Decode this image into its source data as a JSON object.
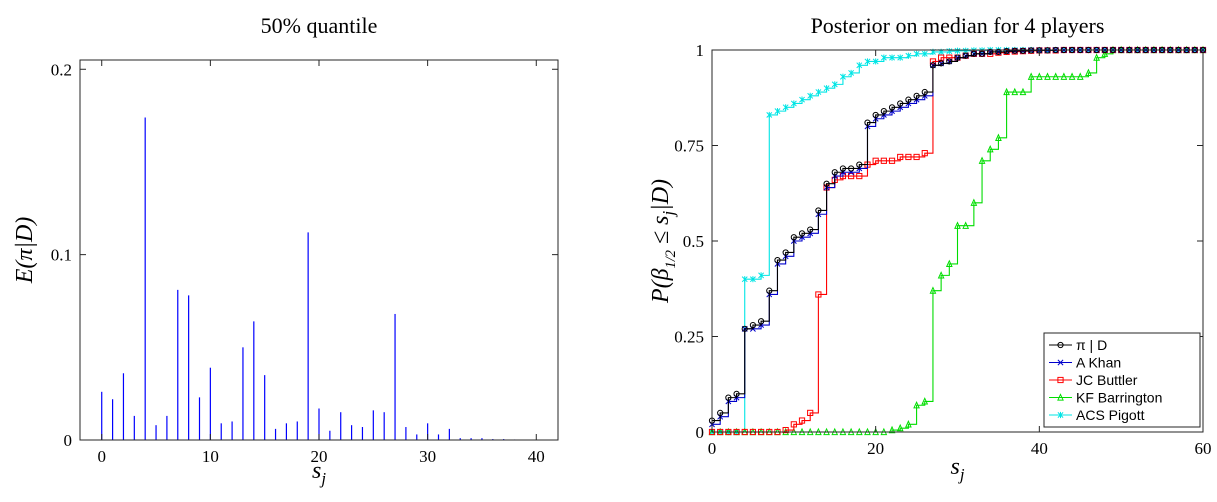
{
  "chart_data": [
    {
      "type": "bar",
      "title": "50% quantile",
      "xlabel": "s_j",
      "ylabel": "E(π|D)",
      "xlim": [
        -2,
        42
      ],
      "ylim": [
        0,
        0.205
      ],
      "xticks": [
        0,
        10,
        20,
        30,
        40
      ],
      "yticks": [
        0,
        0.1,
        0.2
      ],
      "ytick_labels": [
        "0",
        "0.1",
        "0.2"
      ],
      "grid": false,
      "color": "#0000ff",
      "x": [
        0,
        1,
        2,
        3,
        4,
        5,
        6,
        7,
        8,
        9,
        10,
        11,
        12,
        13,
        14,
        15,
        16,
        17,
        18,
        19,
        20,
        21,
        22,
        23,
        24,
        25,
        26,
        27,
        28,
        29,
        30,
        31,
        32,
        33,
        34,
        35,
        36,
        37,
        38,
        39,
        40
      ],
      "values": [
        0.026,
        0.022,
        0.036,
        0.013,
        0.174,
        0.008,
        0.013,
        0.081,
        0.078,
        0.023,
        0.039,
        0.009,
        0.01,
        0.05,
        0.064,
        0.035,
        0.006,
        0.009,
        0.01,
        0.112,
        0.017,
        0.005,
        0.015,
        0.008,
        0.007,
        0.016,
        0.015,
        0.068,
        0.007,
        0.003,
        0.009,
        0.003,
        0.006,
        0.001,
        0.001,
        0.001,
        0.0005,
        0.0005,
        0.0003,
        0.0002,
        0.0001
      ]
    },
    {
      "type": "line",
      "title": "Posterior on median for 4 players",
      "xlabel": "s_j",
      "ylabel": "P(β_1/2 ≤ s_j|D)",
      "xlim": [
        0,
        60
      ],
      "ylim": [
        0,
        1
      ],
      "xticks": [
        0,
        20,
        40,
        60
      ],
      "yticks": [
        0,
        0.25,
        0.5,
        0.75,
        1
      ],
      "ytick_labels": [
        "0",
        "0.25",
        "0.5",
        "0.75",
        "1"
      ],
      "grid": false,
      "step": true,
      "legend_position": "bottom-right",
      "x": [
        0,
        1,
        2,
        3,
        4,
        5,
        6,
        7,
        8,
        9,
        10,
        11,
        12,
        13,
        14,
        15,
        16,
        17,
        18,
        19,
        20,
        21,
        22,
        23,
        24,
        25,
        26,
        27,
        28,
        29,
        30,
        31,
        32,
        33,
        34,
        35,
        36,
        37,
        38,
        39,
        40,
        41,
        42,
        43,
        44,
        45,
        46,
        47,
        48,
        49,
        50,
        51,
        52,
        53,
        54,
        55,
        56,
        57,
        58,
        59,
        60
      ],
      "series": [
        {
          "name": "π | D",
          "color": "#000000",
          "marker": "circle",
          "values": [
            0.03,
            0.05,
            0.09,
            0.1,
            0.27,
            0.28,
            0.29,
            0.37,
            0.45,
            0.47,
            0.51,
            0.52,
            0.53,
            0.58,
            0.65,
            0.68,
            0.69,
            0.69,
            0.7,
            0.81,
            0.83,
            0.84,
            0.85,
            0.86,
            0.87,
            0.88,
            0.89,
            0.96,
            0.965,
            0.97,
            0.98,
            0.985,
            0.99,
            0.99,
            0.995,
            0.995,
            0.997,
            0.998,
            0.998,
            0.999,
            0.999,
            0.999,
            1,
            1,
            1,
            1,
            1,
            1,
            1,
            1,
            1,
            1,
            1,
            1,
            1,
            1,
            1,
            1,
            1,
            1,
            1
          ]
        },
        {
          "name": "A Khan",
          "color": "#0000cc",
          "marker": "x",
          "values": [
            0.02,
            0.04,
            0.08,
            0.09,
            0.27,
            0.27,
            0.28,
            0.36,
            0.44,
            0.46,
            0.5,
            0.51,
            0.52,
            0.57,
            0.64,
            0.67,
            0.68,
            0.68,
            0.69,
            0.8,
            0.82,
            0.83,
            0.84,
            0.85,
            0.86,
            0.87,
            0.88,
            0.96,
            0.965,
            0.97,
            0.98,
            0.985,
            0.99,
            0.99,
            0.995,
            0.995,
            0.997,
            0.998,
            0.998,
            0.999,
            0.999,
            0.999,
            1,
            1,
            1,
            1,
            1,
            1,
            1,
            1,
            1,
            1,
            1,
            1,
            1,
            1,
            1,
            1,
            1,
            1,
            1
          ]
        },
        {
          "name": "JC Buttler",
          "color": "#ff0000",
          "marker": "square",
          "values": [
            0,
            0,
            0,
            0,
            0,
            0,
            0,
            0,
            0,
            0.005,
            0.02,
            0.03,
            0.05,
            0.36,
            0.64,
            0.66,
            0.67,
            0.67,
            0.67,
            0.7,
            0.71,
            0.71,
            0.71,
            0.72,
            0.72,
            0.72,
            0.73,
            0.97,
            0.98,
            0.98,
            0.98,
            0.985,
            0.99,
            0.99,
            0.99,
            0.993,
            0.995,
            0.996,
            0.997,
            0.998,
            0.999,
            0.999,
            0.999,
            1,
            1,
            1,
            1,
            1,
            1,
            1,
            1,
            1,
            1,
            1,
            1,
            1,
            1,
            1,
            1,
            1,
            1
          ]
        },
        {
          "name": "KF Barrington",
          "color": "#00dd00",
          "marker": "triangle",
          "values": [
            0,
            0,
            0,
            0,
            0,
            0,
            0,
            0,
            0,
            0,
            0,
            0,
            0,
            0,
            0,
            0,
            0,
            0,
            0,
            0,
            0,
            0,
            0.005,
            0.01,
            0.02,
            0.07,
            0.08,
            0.37,
            0.41,
            0.44,
            0.54,
            0.54,
            0.6,
            0.71,
            0.74,
            0.77,
            0.89,
            0.89,
            0.89,
            0.93,
            0.93,
            0.93,
            0.93,
            0.93,
            0.93,
            0.93,
            0.94,
            0.98,
            0.99,
            1,
            1,
            1,
            1,
            1,
            1,
            1,
            1,
            1,
            1,
            1,
            1
          ]
        },
        {
          "name": "ACS Pigott",
          "color": "#00e5e5",
          "marker": "star",
          "values": [
            0,
            0,
            0,
            0,
            0.4,
            0.4,
            0.41,
            0.83,
            0.84,
            0.85,
            0.86,
            0.87,
            0.88,
            0.89,
            0.9,
            0.91,
            0.93,
            0.94,
            0.96,
            0.97,
            0.97,
            0.98,
            0.98,
            0.98,
            0.985,
            0.99,
            0.99,
            0.995,
            0.995,
            0.997,
            0.998,
            0.998,
            0.999,
            0.999,
            1,
            1,
            1,
            1,
            1,
            1,
            1,
            1,
            1,
            1,
            1,
            1,
            1,
            1,
            1,
            1,
            1,
            1,
            1,
            1,
            1,
            1,
            1,
            1,
            1,
            1,
            1
          ]
        }
      ]
    }
  ]
}
